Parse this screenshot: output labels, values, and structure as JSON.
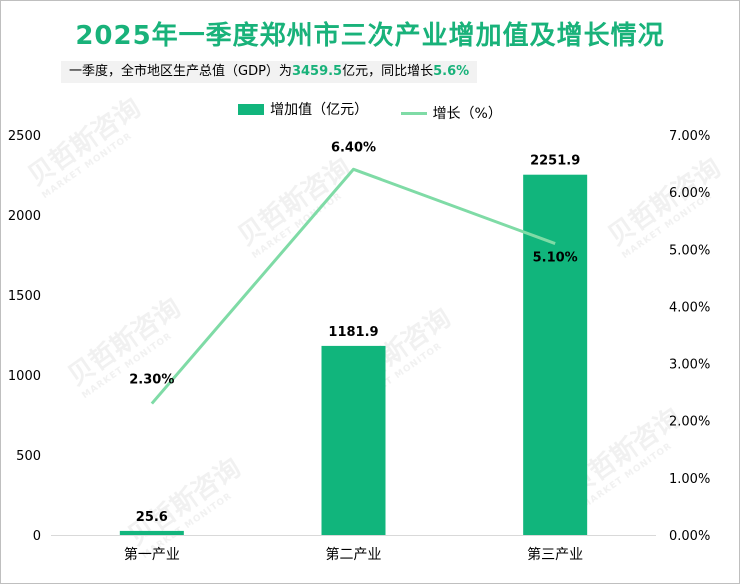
{
  "title": "2025年一季度郑州市三次产业增加值及增长情况",
  "subtitle": {
    "part1": "一季度，全市地区生产总值（GDP）为",
    "gdp": "3459.5",
    "part2": "亿元，同比增长",
    "growth": "5.6%"
  },
  "legend": {
    "bar_label": "增加值（亿元）",
    "line_label": "增长（%）"
  },
  "watermark": {
    "text": "贝哲斯咨询",
    "sub": "MARKET MONITOR"
  },
  "colors": {
    "bar": "#11b57c",
    "line": "#7fdba6",
    "title": "#19b27a",
    "axis": "#d9d9d9"
  },
  "chart_data": {
    "type": "bar+line",
    "categories": [
      "第一产业",
      "第二产业",
      "第三产业"
    ],
    "series": [
      {
        "name": "增加值（亿元）",
        "type": "bar",
        "axis": "left",
        "values": [
          25.6,
          1181.9,
          2251.9
        ],
        "labels": [
          "25.6",
          "1181.9",
          "2251.9"
        ]
      },
      {
        "name": "增长（%）",
        "type": "line",
        "axis": "right",
        "values": [
          2.3,
          6.4,
          5.1
        ],
        "labels": [
          "2.30%",
          "6.40%",
          "5.10%"
        ]
      }
    ],
    "y_left": {
      "min": 0,
      "max": 2500,
      "ticks": [
        "0",
        "500",
        "1000",
        "1500",
        "2000",
        "2500"
      ]
    },
    "y_right": {
      "min": 0,
      "max": 7,
      "ticks": [
        "0.00%",
        "1.00%",
        "2.00%",
        "3.00%",
        "4.00%",
        "5.00%",
        "6.00%",
        "7.00%"
      ]
    },
    "grid": false,
    "legend_position": "top"
  }
}
